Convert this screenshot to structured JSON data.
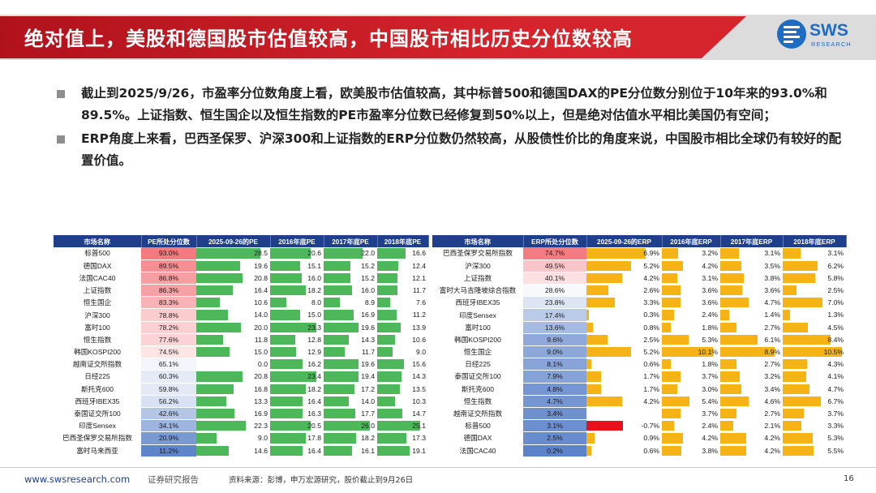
{
  "header": {
    "title": "绝对值上，美股和德国股市估值较高，中国股市相比历史分位数较高",
    "logo_name": "SWS",
    "logo_sub": "RESEARCH"
  },
  "bullets": [
    "截止到2025/9/26，市盈率分位数角度上看，欧美股市估值较高，其中标普500和德国DAX的PE分位数分别位于10年来的93.0%和89.5%。上证指数、恒生国企以及恒生指数的PE市盈率分位数已经修复到50%以上，但是绝对估值水平相比美国仍有空间；",
    "ERP角度上来看，巴西圣保罗、沪深300和上证指数的ERP分位数仍然较高，从股债性价比的角度来说，中国股市相比全球仍有较好的配置价值。"
  ],
  "colors": {
    "header_red": "#d6242c",
    "table_header": "#1f3f8a",
    "pe_bar": "#4db85a",
    "erp_bar": "#f5b315",
    "erp_neg": "#e8101a",
    "pct_high": "#f47a80",
    "pct_mid": "#ffffff",
    "pct_low": "#5b82c9"
  },
  "pe_table": {
    "headers": [
      "市场名称",
      "PE所处分位数",
      "2025-09-26的PE",
      "2016年底PE",
      "2017年底PE",
      "2018年底PE"
    ],
    "rows": [
      {
        "name": "标普500",
        "pct": "93.0%",
        "pct_value": 93.0,
        "vals": [
          28.5,
          20.6,
          22.0,
          16.6
        ]
      },
      {
        "name": "德国DAX",
        "pct": "89.5%",
        "pct_value": 89.5,
        "vals": [
          19.6,
          15.1,
          15.2,
          12.4
        ]
      },
      {
        "name": "法国CAC40",
        "pct": "86.8%",
        "pct_value": 86.8,
        "vals": [
          20.8,
          16.0,
          15.2,
          12.1
        ]
      },
      {
        "name": "上证指数",
        "pct": "86.3%",
        "pct_value": 86.3,
        "vals": [
          16.4,
          18.2,
          16.0,
          11.7
        ]
      },
      {
        "name": "恒生国企",
        "pct": "83.3%",
        "pct_value": 83.3,
        "vals": [
          10.6,
          8.0,
          8.9,
          7.6
        ]
      },
      {
        "name": "沪深300",
        "pct": "78.8%",
        "pct_value": 78.8,
        "vals": [
          14.0,
          15.0,
          16.9,
          11.2
        ]
      },
      {
        "name": "富时100",
        "pct": "78.2%",
        "pct_value": 78.2,
        "vals": [
          20.0,
          23.3,
          19.6,
          13.9
        ]
      },
      {
        "name": "恒生指数",
        "pct": "77.6%",
        "pct_value": 77.6,
        "vals": [
          11.8,
          12.8,
          14.3,
          10.6
        ]
      },
      {
        "name": "韩国KOSPI200",
        "pct": "74.5%",
        "pct_value": 74.5,
        "vals": [
          15.0,
          12.9,
          11.7,
          9.0
        ]
      },
      {
        "name": "越南证交所指数",
        "pct": "65.1%",
        "pct_value": 65.1,
        "vals": [
          0.0,
          16.2,
          19.6,
          15.6
        ]
      },
      {
        "name": "日经225",
        "pct": "60.3%",
        "pct_value": 60.3,
        "vals": [
          20.8,
          23.4,
          19.4,
          14.3
        ]
      },
      {
        "name": "斯托克600",
        "pct": "59.8%",
        "pct_value": 59.8,
        "vals": [
          16.8,
          18.2,
          17.2,
          13.5
        ]
      },
      {
        "name": "西班牙IBEX35",
        "pct": "56.2%",
        "pct_value": 56.2,
        "vals": [
          13.3,
          16.4,
          14.0,
          10.3
        ]
      },
      {
        "name": "泰国证交所100",
        "pct": "42.6%",
        "pct_value": 42.6,
        "vals": [
          16.9,
          16.3,
          17.7,
          14.7
        ]
      },
      {
        "name": "印度Sensex",
        "pct": "34.1%",
        "pct_value": 34.1,
        "vals": [
          22.3,
          20.5,
          26.0,
          25.1
        ]
      },
      {
        "name": "巴西圣保罗交易所指数",
        "pct": "20.9%",
        "pct_value": 20.9,
        "vals": [
          9.0,
          17.8,
          18.2,
          17.3
        ]
      },
      {
        "name": "富时马来西亚",
        "pct": "11.2%",
        "pct_value": 11.2,
        "vals": [
          14.6,
          16.4,
          16.1,
          19.1
        ]
      }
    ]
  },
  "erp_table": {
    "headers": [
      "市场名称",
      "ERP所处分位数",
      "2025-09-26的ERP",
      "2016年底ERP",
      "2017年底ERP",
      "2018年底ERP"
    ],
    "rows": [
      {
        "name": "巴西圣保罗交易所指数",
        "pct": "74.7%",
        "pct_value": 74.7,
        "vals": [
          "6.9%",
          "3.2%",
          "3.1%",
          "3.1%"
        ],
        "nums": [
          6.9,
          3.2,
          3.1,
          3.1
        ]
      },
      {
        "name": "沪深300",
        "pct": "49.5%",
        "pct_value": 49.5,
        "vals": [
          "5.2%",
          "4.2%",
          "3.5%",
          "6.2%"
        ],
        "nums": [
          5.2,
          4.2,
          3.5,
          6.2
        ]
      },
      {
        "name": "上证指数",
        "pct": "40.1%",
        "pct_value": 40.1,
        "vals": [
          "4.2%",
          "3.1%",
          "3.8%",
          "5.8%"
        ],
        "nums": [
          4.2,
          3.1,
          3.8,
          5.8
        ]
      },
      {
        "name": "富时大马吉隆坡综合指数",
        "pct": "28.6%",
        "pct_value": 28.6,
        "vals": [
          "2.6%",
          "3.6%",
          "3.6%",
          "2.5%"
        ],
        "nums": [
          2.6,
          3.6,
          3.6,
          2.5
        ]
      },
      {
        "name": "西班牙IBEX35",
        "pct": "23.8%",
        "pct_value": 23.8,
        "vals": [
          "3.3%",
          "3.6%",
          "4.7%",
          "7.0%"
        ],
        "nums": [
          3.3,
          3.6,
          4.7,
          7.0
        ]
      },
      {
        "name": "印度Sensex",
        "pct": "17.4%",
        "pct_value": 17.4,
        "vals": [
          "0.3%",
          "2.4%",
          "1.4%",
          "1.3%"
        ],
        "nums": [
          0.3,
          2.4,
          1.4,
          1.3
        ]
      },
      {
        "name": "富时100",
        "pct": "13.6%",
        "pct_value": 13.6,
        "vals": [
          "0.8%",
          "1.8%",
          "2.7%",
          "4.5%"
        ],
        "nums": [
          0.8,
          1.8,
          2.7,
          4.5
        ]
      },
      {
        "name": "韩国KOSPI200",
        "pct": "9.6%",
        "pct_value": 9.6,
        "vals": [
          "2.5%",
          "5.3%",
          "6.1%",
          "8.4%"
        ],
        "nums": [
          2.5,
          5.3,
          6.1,
          8.4
        ]
      },
      {
        "name": "恒生国企",
        "pct": "9.0%",
        "pct_value": 9.0,
        "vals": [
          "5.2%",
          "10.1%",
          "8.9%",
          "10.5%"
        ],
        "nums": [
          5.2,
          10.1,
          8.9,
          10.5
        ]
      },
      {
        "name": "日经225",
        "pct": "8.1%",
        "pct_value": 8.1,
        "vals": [
          "0.6%",
          "1.8%",
          "2.7%",
          "4.3%"
        ],
        "nums": [
          0.6,
          1.8,
          2.7,
          4.3
        ]
      },
      {
        "name": "泰国证交所100",
        "pct": "7.9%",
        "pct_value": 7.9,
        "vals": [
          "1.7%",
          "3.7%",
          "3.2%",
          "4.1%"
        ],
        "nums": [
          1.7,
          3.7,
          3.2,
          4.1
        ]
      },
      {
        "name": "斯托克600",
        "pct": "4.8%",
        "pct_value": 4.8,
        "vals": [
          "1.7%",
          "3.0%",
          "3.4%",
          "4.7%"
        ],
        "nums": [
          1.7,
          3.0,
          3.4,
          4.7
        ]
      },
      {
        "name": "恒生指数",
        "pct": "4.7%",
        "pct_value": 4.7,
        "vals": [
          "4.2%",
          "5.4%",
          "4.6%",
          "6.7%"
        ],
        "nums": [
          4.2,
          5.4,
          4.6,
          6.7
        ]
      },
      {
        "name": "越南证交所指数",
        "pct": "3.4%",
        "pct_value": 3.4,
        "vals": [
          "",
          "3.7%",
          "2.7%",
          "3.7%"
        ],
        "nums": [
          null,
          3.7,
          2.7,
          3.7
        ]
      },
      {
        "name": "标普500",
        "pct": "3.1%",
        "pct_value": 3.1,
        "vals": [
          "-0.7%",
          "2.4%",
          "2.1%",
          "3.3%"
        ],
        "nums": [
          -0.7,
          2.4,
          2.1,
          3.3
        ]
      },
      {
        "name": "德国DAX",
        "pct": "2.5%",
        "pct_value": 2.5,
        "vals": [
          "0.9%",
          "4.2%",
          "4.2%",
          "5.3%"
        ],
        "nums": [
          0.9,
          4.2,
          4.2,
          5.3
        ]
      },
      {
        "name": "法国CAC40",
        "pct": "0.2%",
        "pct_value": 0.2,
        "vals": [
          "0.6%",
          "3.8%",
          "4.2%",
          "5.5%"
        ],
        "nums": [
          0.6,
          3.8,
          4.2,
          5.5
        ]
      }
    ]
  },
  "footer": {
    "website": "www.swsresearch.com",
    "report_type": "证券研究报告",
    "source": "资料来源：彭博，申万宏源研究，股价截止到9月26日",
    "page": "16"
  }
}
